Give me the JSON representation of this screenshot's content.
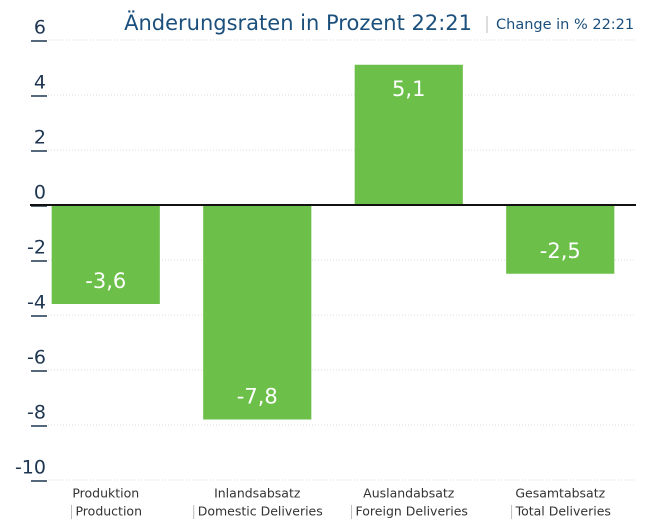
{
  "chart_data": {
    "type": "bar",
    "title": "Änderungsraten in Prozent 22:21",
    "subtitle": "Change in % 22:21",
    "categories": [
      "Produktion",
      "Inlandsabsatz",
      "Auslandabsatz",
      "Gesamtabsatz"
    ],
    "categories_en": [
      "Production",
      "Domestic Deliveries",
      "Foreign Deliveries",
      "Total Deliveries"
    ],
    "values": [
      -3.6,
      -7.8,
      5.1,
      -2.5
    ],
    "value_labels": [
      "-3,6",
      "-7,8",
      "5,1",
      "-2,5"
    ],
    "color": "#6cc04a",
    "ylim": [
      -10,
      6
    ],
    "yticks": [
      -10,
      -8,
      -6,
      -4,
      -2,
      0,
      2,
      4,
      6
    ],
    "grid": true
  }
}
